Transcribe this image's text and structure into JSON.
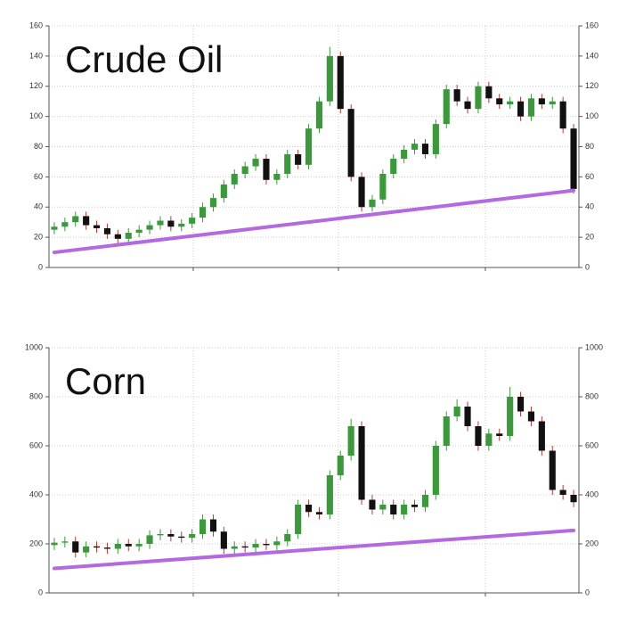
{
  "chart_data": [
    {
      "type": "candlestick",
      "title": "Crude Oil",
      "ylim": [
        0,
        160
      ],
      "yticks": [
        0,
        20,
        40,
        60,
        80,
        100,
        120,
        140,
        160
      ],
      "grid": true,
      "up_color": "#3a9a3a",
      "down_color": "#111111",
      "wick_color": "#c0392b",
      "open": [
        25,
        27,
        30,
        34,
        28,
        26,
        22,
        19,
        23,
        25,
        28,
        31,
        27,
        29,
        33,
        40,
        46,
        55,
        62,
        67,
        72,
        58,
        62,
        75,
        68,
        92,
        110,
        140,
        105,
        60,
        40,
        45,
        62,
        72,
        78,
        82,
        75,
        95,
        118,
        110,
        105,
        120,
        112,
        108,
        110,
        100,
        112,
        108,
        110,
        92
      ],
      "high": [
        30,
        33,
        37,
        37,
        31,
        29,
        25,
        26,
        28,
        31,
        34,
        34,
        32,
        36,
        43,
        49,
        58,
        65,
        70,
        75,
        75,
        65,
        78,
        78,
        95,
        113,
        146,
        143,
        108,
        63,
        48,
        65,
        75,
        81,
        85,
        85,
        98,
        121,
        121,
        113,
        123,
        123,
        115,
        113,
        113,
        115,
        115,
        113,
        113,
        95
      ],
      "low": [
        22,
        24,
        27,
        25,
        23,
        19,
        16,
        16,
        20,
        22,
        25,
        24,
        24,
        26,
        30,
        37,
        43,
        52,
        59,
        64,
        55,
        55,
        59,
        65,
        65,
        89,
        107,
        102,
        57,
        37,
        37,
        42,
        59,
        69,
        75,
        72,
        72,
        92,
        107,
        102,
        102,
        109,
        105,
        105,
        97,
        97,
        105,
        105,
        89,
        49
      ],
      "close": [
        27,
        30,
        34,
        28,
        26,
        22,
        19,
        23,
        25,
        28,
        31,
        27,
        29,
        33,
        40,
        46,
        55,
        62,
        67,
        72,
        58,
        62,
        75,
        68,
        92,
        110,
        140,
        105,
        60,
        40,
        45,
        62,
        72,
        78,
        82,
        75,
        95,
        118,
        110,
        105,
        120,
        112,
        108,
        110,
        100,
        112,
        108,
        110,
        92,
        52
      ],
      "trend": {
        "color": "#b36ae0",
        "values": [
          10,
          51
        ]
      }
    },
    {
      "type": "candlestick",
      "title": "Corn",
      "ylim": [
        0,
        1000
      ],
      "yticks": [
        0,
        200,
        400,
        600,
        800,
        1000
      ],
      "grid": true,
      "up_color": "#3a9a3a",
      "down_color": "#111111",
      "wick_color": "#c0392b",
      "open": [
        195,
        205,
        210,
        165,
        190,
        185,
        180,
        200,
        190,
        200,
        235,
        240,
        230,
        225,
        240,
        300,
        250,
        180,
        190,
        185,
        200,
        195,
        210,
        240,
        360,
        330,
        320,
        480,
        560,
        680,
        380,
        340,
        360,
        320,
        360,
        350,
        400,
        600,
        720,
        760,
        680,
        600,
        650,
        640,
        800,
        740,
        700,
        580,
        420,
        400
      ],
      "high": [
        225,
        230,
        230,
        210,
        210,
        205,
        220,
        220,
        220,
        255,
        260,
        260,
        250,
        260,
        320,
        320,
        270,
        210,
        210,
        220,
        220,
        230,
        260,
        380,
        380,
        350,
        500,
        580,
        710,
        700,
        400,
        380,
        380,
        380,
        380,
        420,
        620,
        740,
        790,
        780,
        700,
        670,
        670,
        840,
        820,
        760,
        720,
        600,
        440,
        420
      ],
      "low": [
        175,
        185,
        145,
        145,
        165,
        160,
        160,
        170,
        170,
        180,
        215,
        210,
        205,
        205,
        220,
        230,
        160,
        160,
        165,
        165,
        175,
        175,
        190,
        220,
        310,
        300,
        300,
        460,
        540,
        360,
        320,
        320,
        300,
        300,
        330,
        330,
        380,
        580,
        700,
        660,
        580,
        580,
        620,
        620,
        720,
        680,
        560,
        400,
        380,
        350
      ],
      "close": [
        205,
        210,
        165,
        190,
        185,
        180,
        200,
        190,
        200,
        235,
        240,
        230,
        225,
        240,
        300,
        250,
        180,
        190,
        185,
        200,
        195,
        210,
        240,
        360,
        330,
        320,
        480,
        560,
        680,
        380,
        340,
        360,
        320,
        360,
        350,
        400,
        600,
        720,
        760,
        680,
        600,
        650,
        640,
        800,
        740,
        700,
        580,
        420,
        400,
        370
      ],
      "trend": {
        "color": "#b36ae0",
        "values": [
          100,
          255
        ]
      }
    }
  ]
}
